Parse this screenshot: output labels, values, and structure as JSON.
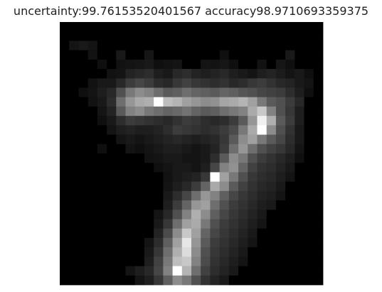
{
  "title": "uncertainty:99.76153520401567 accuracy98.9710693359375",
  "image": {
    "type": "grayscale-pixel-grid",
    "depicts": "handwritten digit 7",
    "rows": 28,
    "cols": 28,
    "colormap": "gray",
    "background": "#000000",
    "axes_visible": false,
    "pixels": [
      [
        0,
        0,
        0,
        0,
        0,
        0,
        0,
        0,
        0,
        0,
        0,
        0,
        0,
        0,
        0,
        0,
        0,
        0,
        0,
        0,
        0,
        0,
        0,
        0,
        0,
        0,
        0,
        0
      ],
      [
        0,
        0,
        0,
        0,
        0,
        0,
        0,
        0,
        0,
        0,
        0,
        0,
        0,
        0,
        0,
        0,
        0,
        0,
        0,
        0,
        0,
        0,
        0,
        0,
        0,
        0,
        0,
        0
      ],
      [
        0,
        20,
        25,
        20,
        0,
        0,
        0,
        0,
        0,
        0,
        0,
        0,
        0,
        0,
        0,
        0,
        0,
        0,
        0,
        0,
        0,
        0,
        0,
        0,
        0,
        0,
        0,
        0
      ],
      [
        0,
        0,
        0,
        18,
        0,
        0,
        25,
        0,
        0,
        22,
        0,
        0,
        0,
        0,
        0,
        0,
        0,
        15,
        0,
        0,
        0,
        0,
        0,
        0,
        25,
        0,
        0,
        0
      ],
      [
        0,
        0,
        0,
        0,
        15,
        0,
        18,
        20,
        22,
        25,
        15,
        18,
        20,
        0,
        0,
        20,
        18,
        22,
        15,
        0,
        0,
        18,
        0,
        22,
        15,
        0,
        0,
        0
      ],
      [
        0,
        0,
        0,
        0,
        0,
        18,
        20,
        35,
        40,
        45,
        30,
        25,
        40,
        45,
        35,
        30,
        35,
        40,
        30,
        25,
        20,
        30,
        35,
        28,
        20,
        25,
        15,
        0
      ],
      [
        0,
        0,
        0,
        18,
        25,
        25,
        40,
        60,
        70,
        60,
        45,
        40,
        55,
        65,
        55,
        50,
        45,
        50,
        40,
        45,
        55,
        60,
        50,
        40,
        35,
        25,
        20,
        0
      ],
      [
        0,
        0,
        15,
        20,
        30,
        40,
        80,
        120,
        140,
        130,
        110,
        90,
        95,
        110,
        100,
        95,
        90,
        100,
        95,
        85,
        80,
        70,
        65,
        60,
        45,
        30,
        15,
        0
      ],
      [
        0,
        0,
        0,
        18,
        25,
        45,
        110,
        150,
        170,
        175,
        255,
        190,
        180,
        160,
        150,
        140,
        145,
        165,
        170,
        180,
        160,
        120,
        90,
        80,
        60,
        40,
        0,
        0
      ],
      [
        0,
        0,
        0,
        0,
        20,
        35,
        90,
        130,
        140,
        120,
        110,
        100,
        105,
        115,
        100,
        90,
        95,
        110,
        120,
        130,
        170,
        200,
        130,
        80,
        55,
        30,
        0,
        0
      ],
      [
        0,
        0,
        0,
        0,
        15,
        25,
        45,
        60,
        55,
        50,
        45,
        40,
        50,
        60,
        55,
        45,
        40,
        45,
        60,
        90,
        150,
        240,
        175,
        90,
        60,
        30,
        0,
        0
      ],
      [
        0,
        0,
        0,
        0,
        0,
        20,
        30,
        35,
        30,
        30,
        35,
        45,
        60,
        55,
        50,
        45,
        50,
        60,
        75,
        120,
        170,
        255,
        140,
        80,
        50,
        25,
        0,
        0
      ],
      [
        0,
        0,
        0,
        0,
        0,
        0,
        20,
        25,
        20,
        25,
        30,
        35,
        40,
        35,
        30,
        35,
        40,
        55,
        90,
        140,
        160,
        120,
        90,
        70,
        45,
        25,
        0,
        0
      ],
      [
        0,
        0,
        0,
        0,
        15,
        0,
        0,
        20,
        15,
        20,
        25,
        30,
        30,
        25,
        20,
        25,
        35,
        60,
        110,
        150,
        110,
        80,
        65,
        55,
        40,
        20,
        0,
        0
      ],
      [
        0,
        0,
        0,
        0,
        0,
        0,
        0,
        0,
        0,
        18,
        20,
        25,
        25,
        20,
        20,
        25,
        45,
        90,
        140,
        120,
        80,
        60,
        50,
        40,
        30,
        15,
        0,
        0
      ],
      [
        0,
        0,
        0,
        0,
        0,
        0,
        0,
        0,
        0,
        0,
        15,
        20,
        25,
        25,
        20,
        30,
        70,
        130,
        145,
        100,
        65,
        50,
        45,
        35,
        25,
        0,
        0,
        0
      ],
      [
        0,
        0,
        0,
        0,
        0,
        0,
        0,
        0,
        0,
        0,
        0,
        18,
        25,
        30,
        35,
        55,
        255,
        160,
        120,
        80,
        55,
        45,
        40,
        30,
        20,
        0,
        0,
        0
      ],
      [
        0,
        0,
        0,
        0,
        0,
        0,
        0,
        0,
        0,
        0,
        0,
        20,
        30,
        40,
        60,
        100,
        170,
        140,
        90,
        65,
        50,
        40,
        35,
        25,
        0,
        0,
        0,
        0
      ],
      [
        0,
        0,
        0,
        0,
        0,
        0,
        0,
        0,
        0,
        0,
        0,
        25,
        45,
        70,
        110,
        150,
        130,
        95,
        70,
        55,
        45,
        35,
        30,
        20,
        0,
        0,
        0,
        0
      ],
      [
        0,
        0,
        0,
        0,
        0,
        0,
        0,
        0,
        0,
        0,
        0,
        30,
        60,
        100,
        150,
        160,
        110,
        80,
        60,
        50,
        40,
        30,
        25,
        0,
        0,
        0,
        0,
        0
      ],
      [
        0,
        0,
        0,
        0,
        0,
        0,
        0,
        0,
        0,
        0,
        20,
        40,
        80,
        130,
        175,
        140,
        95,
        70,
        55,
        45,
        35,
        25,
        0,
        0,
        0,
        0,
        0,
        0
      ],
      [
        0,
        0,
        0,
        0,
        0,
        0,
        0,
        0,
        0,
        0,
        25,
        55,
        110,
        160,
        170,
        120,
        80,
        60,
        50,
        40,
        30,
        20,
        0,
        0,
        0,
        0,
        0,
        0
      ],
      [
        0,
        0,
        0,
        0,
        0,
        0,
        0,
        0,
        0,
        0,
        35,
        75,
        140,
        200,
        160,
        100,
        70,
        55,
        45,
        35,
        25,
        0,
        0,
        0,
        0,
        0,
        0,
        0
      ],
      [
        0,
        0,
        0,
        0,
        0,
        0,
        0,
        0,
        0,
        20,
        45,
        95,
        160,
        230,
        150,
        90,
        60,
        50,
        40,
        30,
        20,
        0,
        0,
        0,
        0,
        0,
        0,
        0
      ],
      [
        0,
        0,
        0,
        0,
        0,
        0,
        0,
        0,
        0,
        25,
        55,
        110,
        175,
        220,
        140,
        80,
        55,
        45,
        35,
        25,
        0,
        0,
        0,
        0,
        0,
        0,
        0,
        0
      ],
      [
        0,
        0,
        0,
        0,
        0,
        0,
        0,
        0,
        0,
        30,
        65,
        120,
        190,
        200,
        130,
        75,
        50,
        40,
        30,
        20,
        0,
        0,
        0,
        0,
        0,
        0,
        0,
        0
      ],
      [
        0,
        0,
        0,
        0,
        0,
        0,
        0,
        20,
        30,
        40,
        70,
        130,
        255,
        180,
        110,
        65,
        45,
        35,
        25,
        0,
        0,
        0,
        0,
        0,
        0,
        0,
        0,
        0
      ],
      [
        0,
        0,
        0,
        0,
        0,
        0,
        0,
        0,
        20,
        30,
        55,
        95,
        140,
        120,
        80,
        50,
        35,
        25,
        0,
        0,
        0,
        0,
        0,
        0,
        0,
        0,
        0,
        0
      ]
    ]
  }
}
